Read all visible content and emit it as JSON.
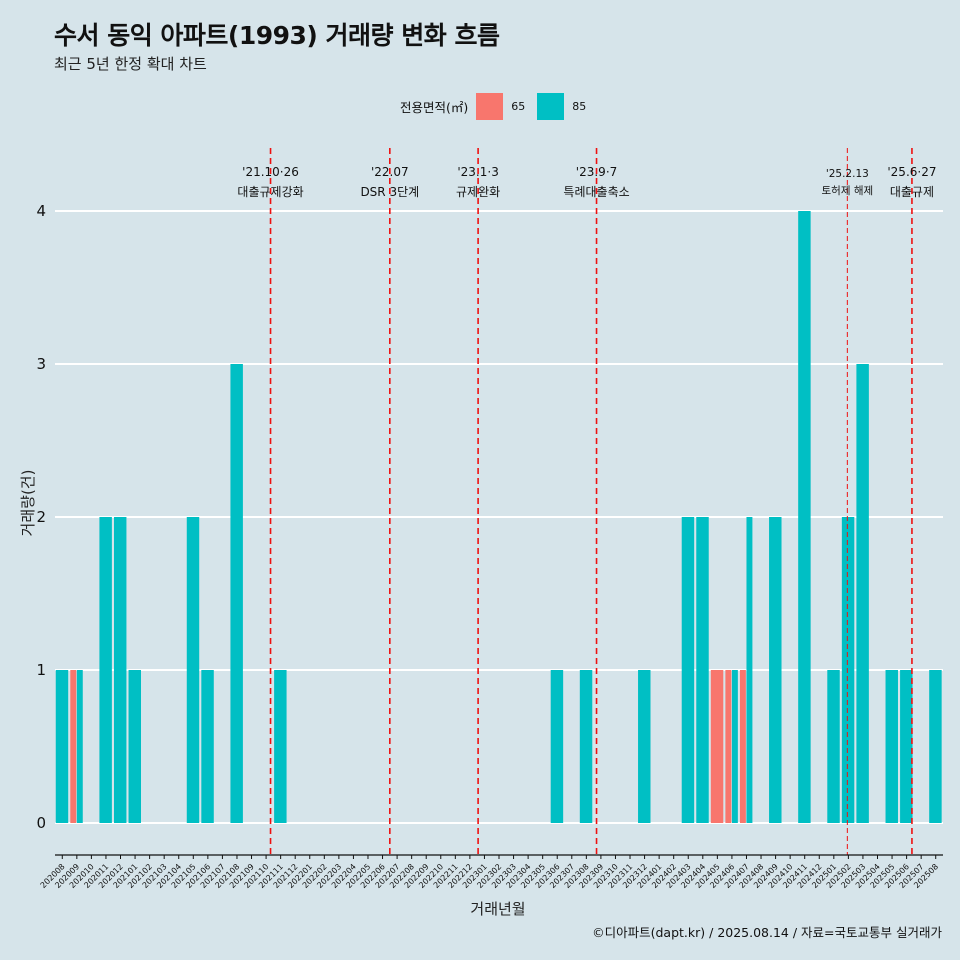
{
  "title": "수서 동익 아파트(1993) 거래량 변화 흐름",
  "subtitle": "최근 5년 한정 확대 차트",
  "caption": "©디아파트(dapt.kr) / 2025.08.14 / 자료=국토교통부 실거래가",
  "colors": {
    "65": "#f8766d",
    "85": "#00bfc4",
    "background": "#d6e4ea",
    "event_line": "#ee1111"
  },
  "chart_data": {
    "type": "bar",
    "xlabel": "거래년월",
    "ylabel": "거래량(건)",
    "ylim": [
      0,
      4
    ],
    "yticks": [
      0,
      1,
      2,
      3,
      4
    ],
    "grid": true,
    "legend": {
      "title": "전용면적(㎡)",
      "position": "top",
      "entries": [
        "65",
        "85"
      ]
    },
    "categories": [
      "202008",
      "202009",
      "202010",
      "202011",
      "202012",
      "202101",
      "202102",
      "202103",
      "202104",
      "202105",
      "202106",
      "202107",
      "202108",
      "202109",
      "202110",
      "202111",
      "202112",
      "202201",
      "202202",
      "202203",
      "202204",
      "202205",
      "202206",
      "202207",
      "202208",
      "202209",
      "202210",
      "202211",
      "202212",
      "202301",
      "202302",
      "202303",
      "202304",
      "202305",
      "202306",
      "202307",
      "202308",
      "202309",
      "202310",
      "202311",
      "202312",
      "202401",
      "202402",
      "202403",
      "202404",
      "202405",
      "202406",
      "202407",
      "202408",
      "202409",
      "202410",
      "202411",
      "202412",
      "202501",
      "202502",
      "202503",
      "202504",
      "202505",
      "202506",
      "202507",
      "202508"
    ],
    "bars": [
      {
        "month": "202008",
        "values": {
          "85": 1
        }
      },
      {
        "month": "202009",
        "values": {
          "65": 1,
          "85": 1
        }
      },
      {
        "month": "202011",
        "values": {
          "85": 2
        }
      },
      {
        "month": "202012",
        "values": {
          "85": 2
        }
      },
      {
        "month": "202101",
        "values": {
          "85": 1
        }
      },
      {
        "month": "202105",
        "values": {
          "85": 2
        }
      },
      {
        "month": "202106",
        "values": {
          "85": 1
        }
      },
      {
        "month": "202108",
        "values": {
          "85": 3
        }
      },
      {
        "month": "202111",
        "values": {
          "85": 1
        }
      },
      {
        "month": "202306",
        "values": {
          "85": 1
        }
      },
      {
        "month": "202308",
        "values": {
          "85": 1
        }
      },
      {
        "month": "202312",
        "values": {
          "85": 1
        }
      },
      {
        "month": "202403",
        "values": {
          "85": 2
        }
      },
      {
        "month": "202404",
        "values": {
          "85": 2
        }
      },
      {
        "month": "202405",
        "values": {
          "65": 1
        }
      },
      {
        "month": "202406",
        "values": {
          "65": 1,
          "85": 1
        }
      },
      {
        "month": "202407",
        "values": {
          "65": 1,
          "85": 2
        }
      },
      {
        "month": "202409",
        "values": {
          "85": 2
        }
      },
      {
        "month": "202411",
        "values": {
          "85": 4
        }
      },
      {
        "month": "202501",
        "values": {
          "85": 1
        }
      },
      {
        "month": "202502",
        "values": {
          "85": 2
        }
      },
      {
        "month": "202503",
        "values": {
          "85": 3
        }
      },
      {
        "month": "202505",
        "values": {
          "85": 1
        }
      },
      {
        "month": "202506",
        "values": {
          "85": 1
        }
      },
      {
        "month": "202508",
        "values": {
          "85": 1
        }
      }
    ],
    "events": [
      {
        "at": "2021-10-26",
        "date_label": "'21.10·26",
        "text": "대출규제강화"
      },
      {
        "at": "2022-07-01",
        "date_label": "'22.07",
        "text": "DSR 3단계"
      },
      {
        "at": "2023-01-03",
        "date_label": "'23.1·3",
        "text": "규제완화"
      },
      {
        "at": "2023-09-07",
        "date_label": "'23.9·7",
        "text": "특례대출축소"
      },
      {
        "at": "2025-02-13",
        "date_label": "'25.2.13",
        "text": "토허제 해제",
        "style": "thin"
      },
      {
        "at": "2025-06-27",
        "date_label": "'25.6·27",
        "text": "대출규제"
      }
    ]
  }
}
